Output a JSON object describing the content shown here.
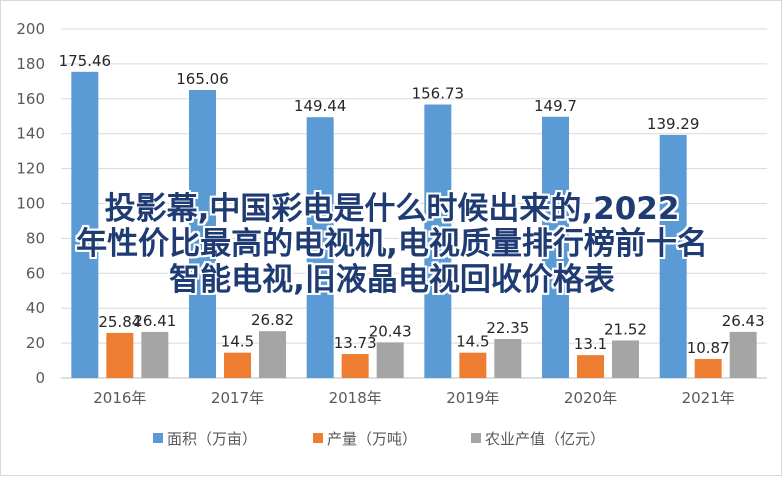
{
  "overlay": {
    "line1": "投影幕,中国彩电是什么时候出来的,2022",
    "line2": "年性价比最高的电视机,电视质量排行榜前十名",
    "line3": "智能电视,旧液晶电视回收价格表"
  },
  "colors": {
    "area": "#5b9bd5",
    "output": "#ed7d31",
    "value": "#a5a5a5",
    "grid": "#d9d9d9",
    "axis": "#bfbfbf"
  },
  "chart_data": {
    "type": "bar",
    "categories": [
      "2016年",
      "2017年",
      "2018年",
      "2019年",
      "2020年",
      "2021年"
    ],
    "series": [
      {
        "name": "面积（万亩）",
        "values": [
          175.46,
          165.06,
          149.44,
          156.73,
          149.7,
          139.29
        ],
        "labels": [
          "175.46",
          "165.06",
          "149.44",
          "156.73",
          "149.7",
          "139.29"
        ]
      },
      {
        "name": "产量（万吨）",
        "values": [
          25.84,
          14.5,
          13.73,
          14.5,
          13.1,
          10.87
        ],
        "labels": [
          "25.84",
          "14.5",
          "13.73",
          "14.5",
          "13.1",
          "10.87"
        ]
      },
      {
        "name": "农业产值（亿元）",
        "values": [
          26.41,
          26.82,
          20.43,
          22.35,
          21.52,
          26.43
        ],
        "labels": [
          "26.41",
          "26.82",
          "20.43",
          "22.35",
          "21.52",
          "26.43"
        ]
      }
    ],
    "yticks": [
      "0",
      "20",
      "40",
      "60",
      "80",
      "100",
      "120",
      "140",
      "160",
      "180",
      "200"
    ],
    "ylim": [
      0,
      200
    ],
    "grid": true,
    "legend": "bottom"
  }
}
